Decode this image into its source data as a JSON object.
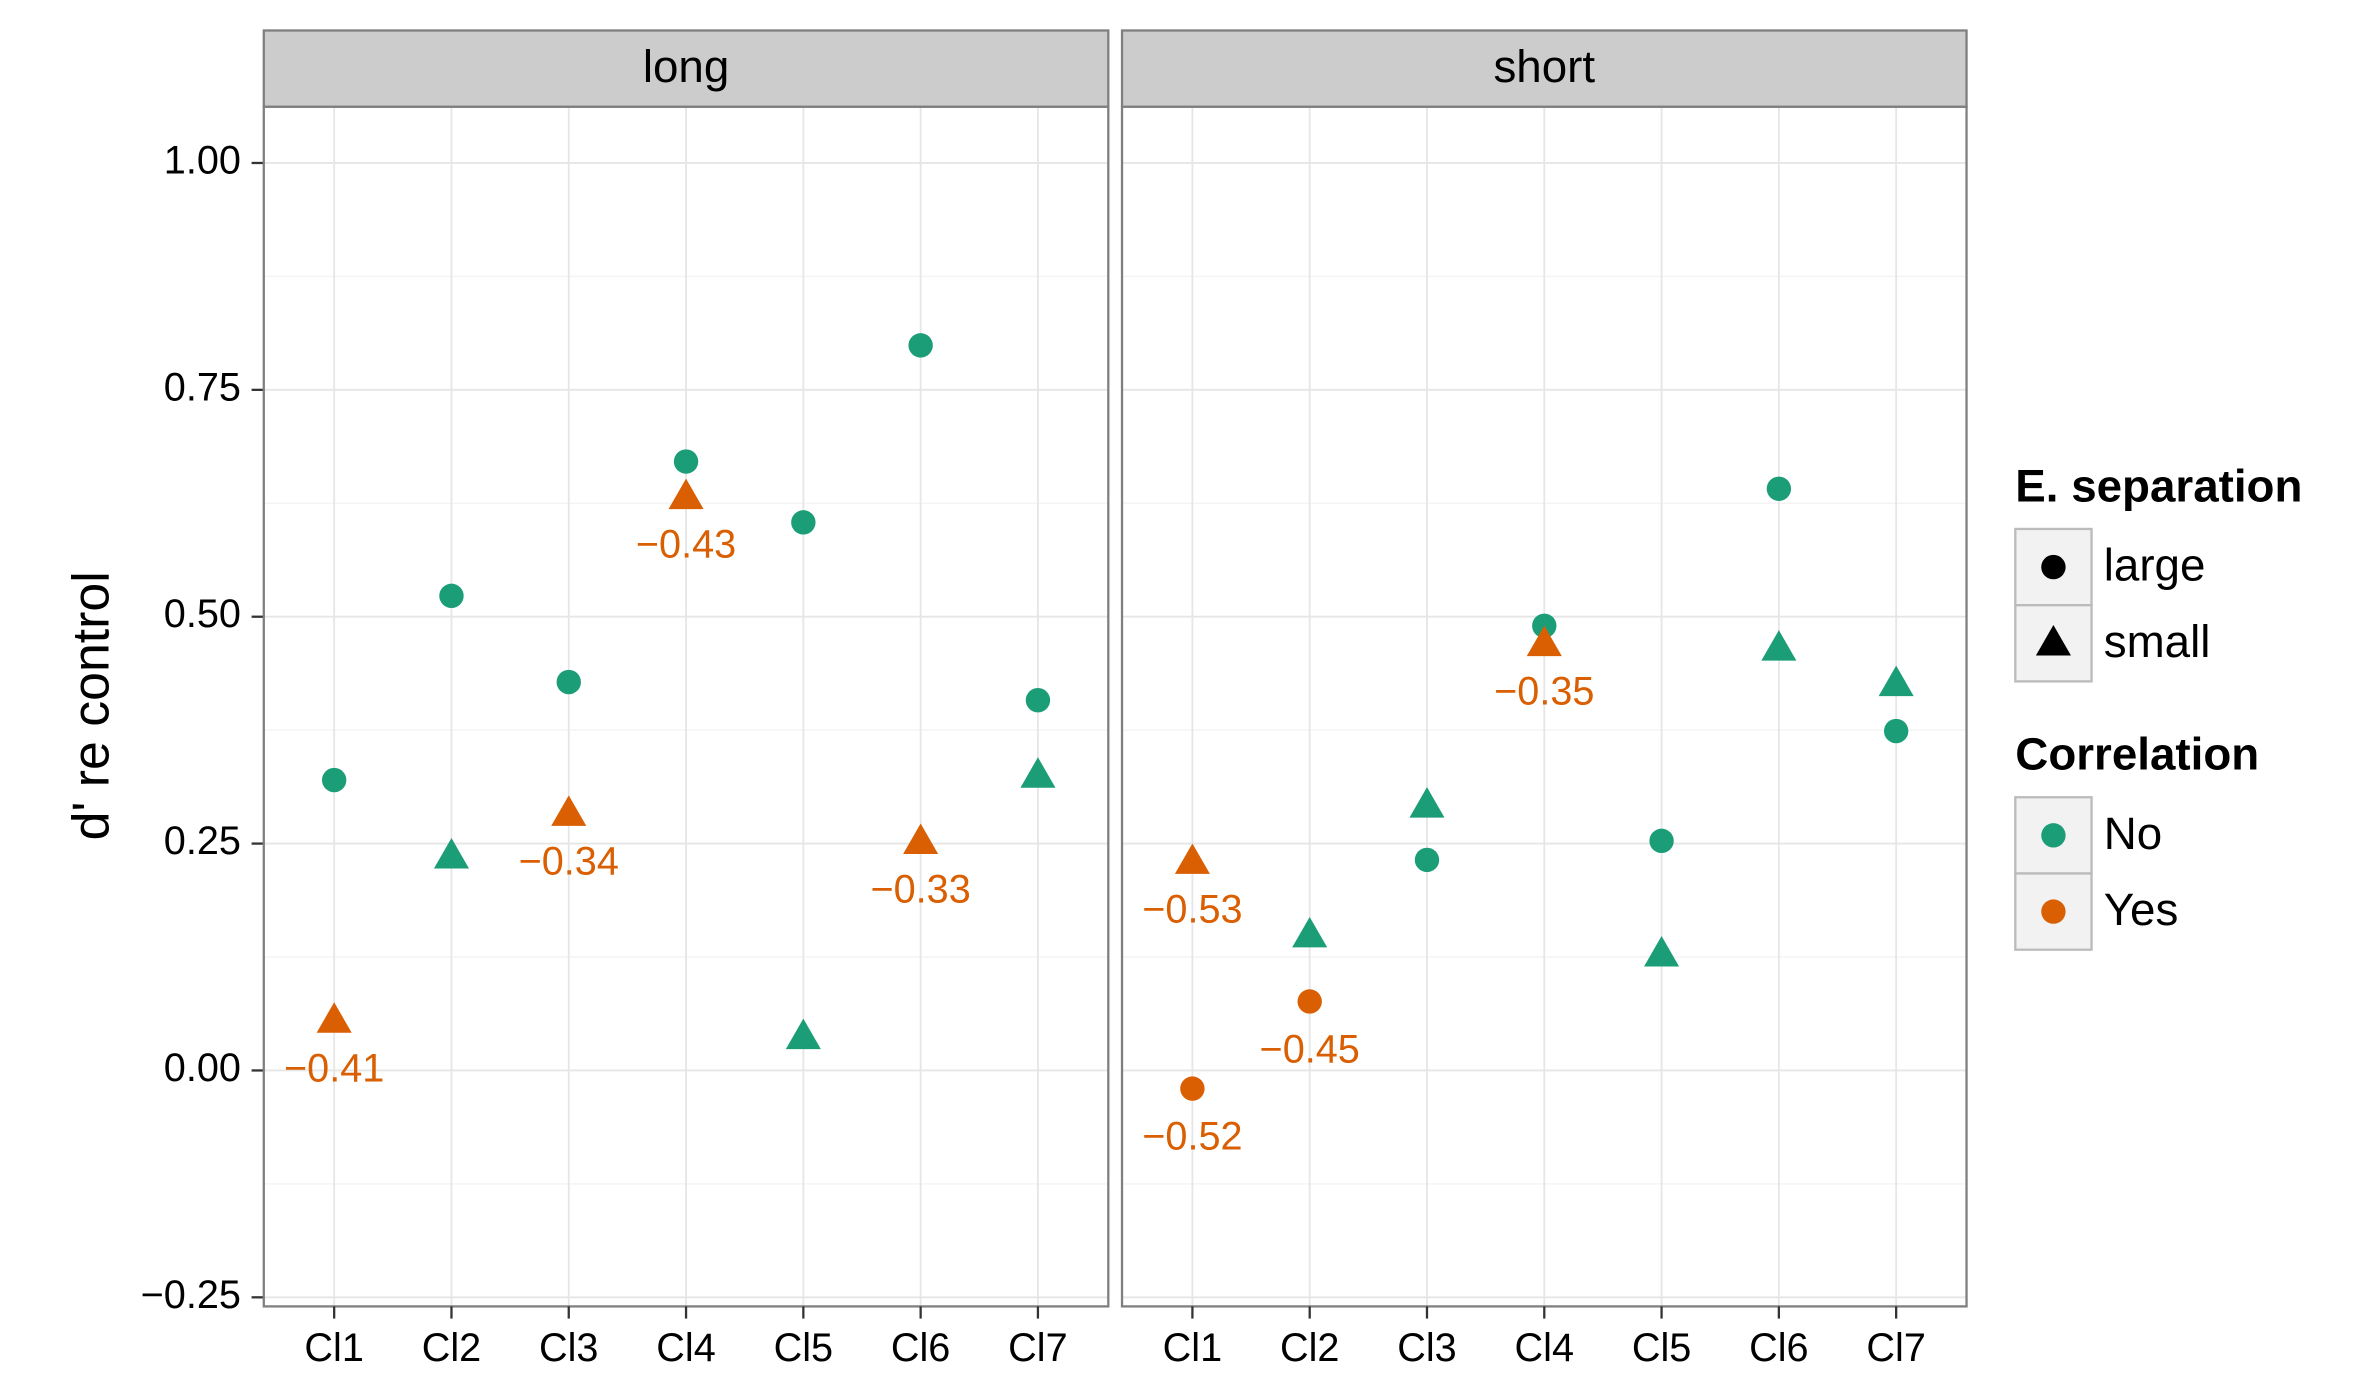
{
  "chart_data": {
    "type": "scatter",
    "ylabel": "d' re control",
    "ylim": [
      -0.26,
      1.062
    ],
    "yticks": [
      {
        "value": -0.25,
        "label": "−0.25"
      },
      {
        "value": 0,
        "label": "0.00"
      },
      0.25,
      {
        "value": 0.5,
        "label": "0.50"
      },
      0.75,
      {
        "value": 1,
        "label": "1.00"
      }
    ],
    "grid": true,
    "categories": [
      "Cl1",
      "Cl2",
      "Cl3",
      "Cl4",
      "Cl5",
      "Cl6",
      "Cl7"
    ],
    "legend_position": "right",
    "shape_legend": {
      "title": "E. separation",
      "entries": [
        "large",
        "small"
      ],
      "shapes": [
        "circle",
        "triangle"
      ]
    },
    "color_legend": {
      "title": "Correlation",
      "entries": [
        "No",
        "Yes"
      ],
      "colors": [
        "#1b9e77",
        "#d95f02"
      ]
    },
    "panels": [
      {
        "title": "long",
        "points": [
          {
            "x": "Cl1",
            "y": 0.32,
            "separation": "large",
            "correlation": "No"
          },
          {
            "x": "Cl1",
            "y": 0.055,
            "separation": "small",
            "correlation": "Yes",
            "label": "−0.41"
          },
          {
            "x": "Cl2",
            "y": 0.523,
            "separation": "large",
            "correlation": "No"
          },
          {
            "x": "Cl2",
            "y": 0.236,
            "separation": "small",
            "correlation": "No"
          },
          {
            "x": "Cl3",
            "y": 0.428,
            "separation": "large",
            "correlation": "No"
          },
          {
            "x": "Cl3",
            "y": 0.283,
            "separation": "small",
            "correlation": "Yes",
            "label": "−0.34"
          },
          {
            "x": "Cl4",
            "y": 0.671,
            "separation": "large",
            "correlation": "No"
          },
          {
            "x": "Cl4",
            "y": 0.632,
            "separation": "small",
            "correlation": "Yes",
            "label": "−0.43"
          },
          {
            "x": "Cl5",
            "y": 0.604,
            "separation": "large",
            "correlation": "No"
          },
          {
            "x": "Cl5",
            "y": 0.037,
            "separation": "small",
            "correlation": "No"
          },
          {
            "x": "Cl6",
            "y": 0.799,
            "separation": "large",
            "correlation": "No"
          },
          {
            "x": "Cl6",
            "y": 0.252,
            "separation": "small",
            "correlation": "Yes",
            "label": "−0.33"
          },
          {
            "x": "Cl7",
            "y": 0.408,
            "separation": "large",
            "correlation": "No"
          },
          {
            "x": "Cl7",
            "y": 0.325,
            "separation": "small",
            "correlation": "No"
          }
        ]
      },
      {
        "title": "short",
        "points": [
          {
            "x": "Cl1",
            "y": 0.23,
            "separation": "small",
            "correlation": "Yes",
            "label": "−0.53"
          },
          {
            "x": "Cl1",
            "y": -0.02,
            "separation": "large",
            "correlation": "Yes",
            "label": "−0.52"
          },
          {
            "x": "Cl2",
            "y": 0.149,
            "separation": "small",
            "correlation": "No"
          },
          {
            "x": "Cl2",
            "y": 0.076,
            "separation": "large",
            "correlation": "Yes",
            "label": "−0.45"
          },
          {
            "x": "Cl3",
            "y": 0.292,
            "separation": "small",
            "correlation": "No"
          },
          {
            "x": "Cl3",
            "y": 0.232,
            "separation": "large",
            "correlation": "No"
          },
          {
            "x": "Cl4",
            "y": 0.49,
            "separation": "large",
            "correlation": "No"
          },
          {
            "x": "Cl4",
            "y": 0.47,
            "separation": "small",
            "correlation": "Yes",
            "label": "−0.35"
          },
          {
            "x": "Cl5",
            "y": 0.253,
            "separation": "large",
            "correlation": "No"
          },
          {
            "x": "Cl5",
            "y": 0.128,
            "separation": "small",
            "correlation": "No"
          },
          {
            "x": "Cl6",
            "y": 0.641,
            "separation": "large",
            "correlation": "No"
          },
          {
            "x": "Cl6",
            "y": 0.465,
            "separation": "small",
            "correlation": "No"
          },
          {
            "x": "Cl7",
            "y": 0.426,
            "separation": "small",
            "correlation": "No"
          },
          {
            "x": "Cl7",
            "y": 0.374,
            "separation": "large",
            "correlation": "No"
          }
        ]
      }
    ]
  }
}
